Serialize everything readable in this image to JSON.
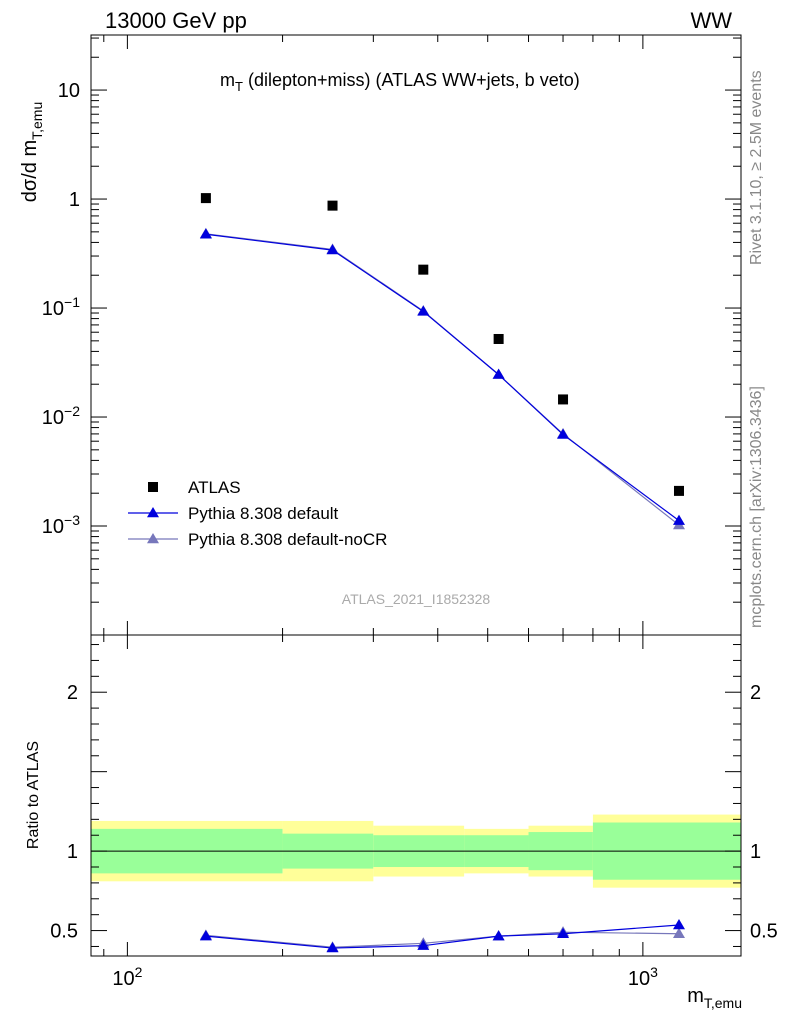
{
  "header": {
    "left": "13000 GeV pp",
    "right": "WW"
  },
  "side_labels": {
    "rivet": "Rivet 3.1.10, ≥ 2.5M events",
    "mcplots": "mcplots.cern.ch [arXiv:1306.3436]"
  },
  "chart_data": [
    {
      "type": "scatter",
      "title": "m",
      "title_sub": "T",
      "title_rest": " (dilepton+miss) (ATLAS WW+jets, b veto)",
      "analysis_id": "ATLAS_2021_I1852328",
      "ylabel": "dσ/d m",
      "ylabel_sub": "T,emu",
      "xlabel": "m",
      "xlabel_sub": "T,emu",
      "xscale": "log",
      "yscale": "log",
      "xlim": [
        85,
        1550
      ],
      "ylim": [
        0.0001,
        32
      ],
      "yticks": [
        {
          "value": 10,
          "base": "10",
          "exp": ""
        },
        {
          "value": 1,
          "base": "1",
          "exp": ""
        },
        {
          "value": 0.1,
          "base": "10",
          "exp": "−1"
        },
        {
          "value": 0.01,
          "base": "10",
          "exp": "−2"
        },
        {
          "value": 0.001,
          "base": "10",
          "exp": "−3"
        }
      ],
      "xticks": [
        {
          "value": 100,
          "base": "10",
          "exp": "2"
        },
        {
          "value": 1000,
          "base": "10",
          "exp": "3"
        }
      ],
      "bin_edges": [
        85,
        200,
        300,
        450,
        600,
        800,
        1550
      ],
      "legend_position": "lower-left",
      "series": [
        {
          "name": "ATLAS",
          "marker": "square",
          "color": "#000000",
          "x": [
            142,
            250,
            375,
            525,
            700,
            1175
          ],
          "y": [
            1.02,
            0.87,
            0.225,
            0.052,
            0.0145,
            0.0021
          ]
        },
        {
          "name": "Pythia 8.308 default",
          "marker": "triangle",
          "color": "#0000dd",
          "x": [
            142,
            250,
            375,
            525,
            700,
            1175
          ],
          "y": [
            0.475,
            0.34,
            0.093,
            0.0245,
            0.0069,
            0.00112
          ]
        },
        {
          "name": "Pythia 8.308 default-noCR",
          "marker": "triangle",
          "color": "#7777bb",
          "x": [
            142,
            250,
            375,
            525,
            700,
            1175
          ],
          "y": [
            0.48,
            0.345,
            0.094,
            0.0245,
            0.007,
            0.00102
          ]
        }
      ]
    },
    {
      "type": "line",
      "ylabel": "Ratio to ATLAS",
      "xscale": "log",
      "xlim": [
        85,
        1550
      ],
      "ylim": [
        0.34,
        2.36
      ],
      "yticks": [
        0.5,
        1,
        2
      ],
      "ytick_labels": [
        "0.5",
        "1",
        "2"
      ],
      "bands": {
        "edges": [
          85,
          200,
          300,
          450,
          600,
          800,
          1550
        ],
        "green": [
          [
            0.86,
            1.14
          ],
          [
            0.89,
            1.11
          ],
          [
            0.9,
            1.1
          ],
          [
            0.9,
            1.1
          ],
          [
            0.88,
            1.12
          ],
          [
            0.82,
            1.18
          ]
        ],
        "yellow": [
          [
            0.81,
            1.19
          ],
          [
            0.81,
            1.19
          ],
          [
            0.84,
            1.16
          ],
          [
            0.86,
            1.14
          ],
          [
            0.84,
            1.16
          ],
          [
            0.77,
            1.23
          ]
        ]
      },
      "series": [
        {
          "name": "Pythia 8.308 default",
          "color": "#0000dd",
          "x": [
            142,
            250,
            375,
            525,
            700,
            1175
          ],
          "y": [
            0.465,
            0.39,
            0.405,
            0.465,
            0.48,
            0.535
          ],
          "yerr": [
            0.006,
            0.004,
            0.006,
            0.008,
            0.012,
            0.02
          ]
        },
        {
          "name": "Pythia 8.308 default-noCR",
          "color": "#7777bb",
          "x": [
            142,
            250,
            375,
            525,
            700,
            1175
          ],
          "y": [
            0.47,
            0.395,
            0.42,
            0.465,
            0.49,
            0.48
          ],
          "yerr": [
            0.006,
            0.004,
            0.006,
            0.008,
            0.012,
            0.018
          ]
        }
      ]
    }
  ]
}
